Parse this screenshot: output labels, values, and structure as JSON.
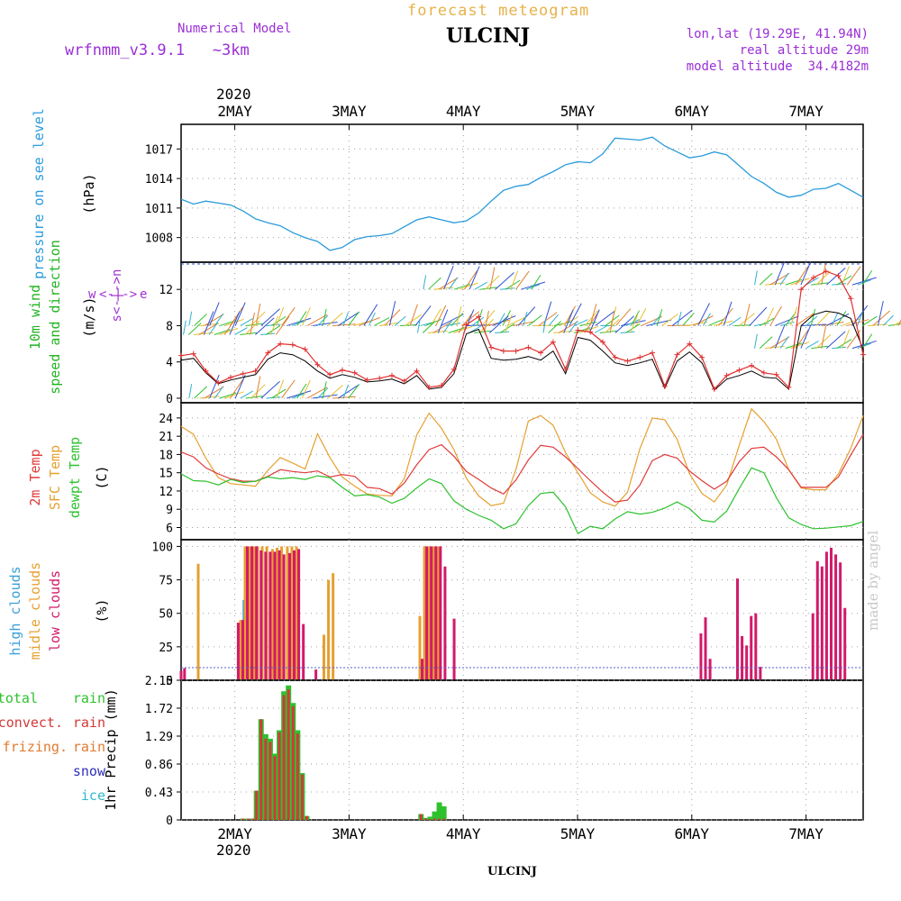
{
  "header": {
    "subtitle_top": "forecast meteogram",
    "station": "ULCINJ",
    "model_line1": "Numerical Model",
    "model_line2": "wrfnmm_v3.9.1   ~3km",
    "coords": "lon,lat (19.29E, 41.94N)",
    "real_alt": "real altitude 29m",
    "model_alt": "model altitude  34.4182m",
    "footer_station": "ULCINJ",
    "credit": "made by angel"
  },
  "colors": {
    "pressure": "#2a9bdc",
    "wind_label": "#22b422",
    "wind_dir": "#a030d0",
    "wind_red": "#e03030",
    "t2m": "#e03a3a",
    "tsfc": "#e6a030",
    "dew": "#2ec12e",
    "high": "#3aa0d8",
    "mid": "#e6a030",
    "low": "#d21a6a",
    "total": "#2ec12e",
    "convect": "#d23a3a",
    "frizing": "#e07a30",
    "snow": "#3030b8",
    "ice": "#30b8c8",
    "grid": "#a0a0a0"
  },
  "chart_data": [
    {
      "type": "line",
      "panel": "pressure",
      "ylabel_parts": [
        "pressure on see level",
        "(hPa)"
      ],
      "yticks": [
        1008,
        1011,
        1014,
        1017
      ],
      "ylim": [
        1005.5,
        1019.5
      ],
      "x_axis_top": {
        "year": "2020",
        "ticks": [
          "2MAY",
          "3MAY",
          "4MAY",
          "5MAY",
          "6MAY",
          "7MAY"
        ]
      },
      "series": [
        {
          "values": [
            1011.9,
            1011.4,
            1011.7,
            1011.5,
            1011.3,
            1010.7,
            1009.9,
            1009.5,
            1009.2,
            1008.5,
            1008.0,
            1007.6,
            1006.7,
            1007.0,
            1007.8,
            1008.1,
            1008.2,
            1008.4,
            1009.1,
            1009.8,
            1010.1,
            1009.8,
            1009.5,
            1009.7,
            1010.5,
            1011.7,
            1012.8,
            1013.2,
            1013.4,
            1014.1,
            1014.7,
            1015.4,
            1015.7,
            1015.6,
            1016.5,
            1018.1,
            1018.0,
            1017.9,
            1018.2,
            1017.3,
            1016.7,
            1016.1,
            1016.3,
            1016.7,
            1016.4,
            1015.3,
            1014.2,
            1013.5,
            1012.6,
            1012.1,
            1012.3,
            1012.9,
            1013.0,
            1013.5,
            1012.8,
            1012.1
          ]
        }
      ]
    },
    {
      "type": "line",
      "panel": "wind",
      "ylabel_parts": [
        "10m wind",
        "speed and direction",
        "(m/s)"
      ],
      "dir_legend": [
        "w",
        "<-|->",
        "e",
        "s<-|->n"
      ],
      "yticks": [
        0,
        4,
        8,
        12
      ],
      "ylim": [
        -0.5,
        15
      ],
      "series": [
        {
          "name": "speed_red",
          "values": [
            4.7,
            4.9,
            3.0,
            1.7,
            2.3,
            2.7,
            3.0,
            5.0,
            6.0,
            5.9,
            5.4,
            3.7,
            2.6,
            3.1,
            2.8,
            2.0,
            2.2,
            2.5,
            1.9,
            3.0,
            1.2,
            1.4,
            3.2,
            8.1,
            9.0,
            5.6,
            5.2,
            5.2,
            5.6,
            5.0,
            6.2,
            3.2,
            7.5,
            7.3,
            6.2,
            4.5,
            4.1,
            4.5,
            5.0,
            1.3,
            4.8,
            6.0,
            4.5,
            1.0,
            2.5,
            3.1,
            3.6,
            2.8,
            2.6,
            1.2,
            12.0,
            13.3,
            14.0,
            13.5,
            11.0,
            4.8
          ]
        },
        {
          "name": "speed_black",
          "values": [
            4.2,
            4.4,
            2.8,
            1.6,
            2.0,
            2.3,
            2.6,
            4.3,
            5.0,
            4.8,
            4.1,
            3.0,
            2.2,
            2.6,
            2.3,
            1.8,
            1.9,
            2.1,
            1.6,
            2.5,
            1.0,
            1.2,
            2.7,
            7.1,
            7.6,
            4.4,
            4.2,
            4.3,
            4.6,
            4.2,
            5.2,
            2.7,
            6.7,
            6.4,
            5.2,
            3.9,
            3.6,
            3.9,
            4.3,
            1.1,
            4.1,
            5.1,
            3.9,
            0.9,
            2.1,
            2.5,
            3.0,
            2.3,
            2.2,
            1.0,
            8.0,
            9.2,
            9.6,
            9.4,
            8.8,
            5.4
          ]
        }
      ]
    },
    {
      "type": "line",
      "panel": "temperature",
      "ylabel_parts": [
        "2m Temp",
        "SFC Temp",
        "dewpt Temp",
        "(C)"
      ],
      "yticks": [
        6,
        9,
        12,
        15,
        18,
        21,
        24
      ],
      "ylim": [
        4,
        26.5
      ],
      "series": [
        {
          "name": "2m Temp",
          "values": [
            18.4,
            17.6,
            15.8,
            14.8,
            14.0,
            13.6,
            13.6,
            14.4,
            15.5,
            15.2,
            15.0,
            15.3,
            14.3,
            14.7,
            14.4,
            12.6,
            12.4,
            11.5,
            13.3,
            16.3,
            18.8,
            19.6,
            17.7,
            15.2,
            13.9,
            12.5,
            11.5,
            13.8,
            17.1,
            19.5,
            19.2,
            17.6,
            15.7,
            13.7,
            11.8,
            10.2,
            10.5,
            13.0,
            17.0,
            18.0,
            17.4,
            15.3,
            13.7,
            12.3,
            13.6,
            16.8,
            19.0,
            19.2,
            17.6,
            15.5,
            12.6,
            12.6,
            12.6,
            14.3,
            17.9,
            21.3
          ]
        },
        {
          "name": "SFC Temp",
          "values": [
            22.6,
            21.3,
            17.4,
            14.2,
            13.2,
            13.0,
            12.8,
            15.4,
            17.5,
            16.6,
            15.6,
            21.4,
            17.5,
            14.3,
            12.8,
            11.5,
            11.3,
            11.2,
            14.0,
            21.2,
            24.8,
            22.3,
            18.8,
            14.1,
            11.2,
            9.6,
            10.0,
            15.5,
            23.5,
            24.4,
            22.8,
            18.3,
            15.0,
            11.7,
            10.2,
            9.5,
            11.8,
            19.0,
            24.0,
            23.7,
            20.5,
            14.8,
            11.6,
            10.2,
            13.0,
            19.5,
            25.5,
            23.4,
            20.5,
            15.5,
            12.5,
            12.2,
            12.2,
            14.8,
            19.0,
            24.4
          ]
        },
        {
          "name": "dewpt Temp",
          "values": [
            14.8,
            13.7,
            13.6,
            13.0,
            13.9,
            13.4,
            13.6,
            14.3,
            14.0,
            14.2,
            13.9,
            14.5,
            14.2,
            12.6,
            11.2,
            11.4,
            11.0,
            10.0,
            10.8,
            12.5,
            14.0,
            13.2,
            10.4,
            9.0,
            8.0,
            7.2,
            5.8,
            6.6,
            9.6,
            11.6,
            11.8,
            9.4,
            5.0,
            6.2,
            5.8,
            7.4,
            8.6,
            8.2,
            8.5,
            9.2,
            10.2,
            9.1,
            7.2,
            6.9,
            8.7,
            12.4,
            15.8,
            15.0,
            10.9,
            7.6,
            6.5,
            5.8,
            5.9,
            6.1,
            6.3,
            7.0
          ]
        }
      ]
    },
    {
      "type": "bar",
      "panel": "clouds",
      "ylabel_parts": [
        "high clouds",
        "midle clouds",
        "low clouds",
        "(%)"
      ],
      "yticks": [
        0,
        25,
        50,
        75,
        100
      ],
      "ylim": [
        0,
        105
      ],
      "series": [
        {
          "name": "high",
          "values": [
            [
              2.08,
              60
            ],
            [
              2.1,
              57
            ],
            [
              2.14,
              58
            ],
            [
              2.16,
              5
            ]
          ]
        },
        {
          "name": "midle",
          "values": [
            [
              1.68,
              87
            ],
            [
              2.05,
              45
            ],
            [
              2.09,
              100
            ],
            [
              2.13,
              100
            ],
            [
              2.17,
              100
            ],
            [
              2.2,
              100
            ],
            [
              2.24,
              100
            ],
            [
              2.28,
              100
            ],
            [
              2.33,
              98
            ],
            [
              2.37,
              99
            ],
            [
              2.41,
              100
            ],
            [
              2.46,
              100
            ],
            [
              2.5,
              100
            ],
            [
              2.54,
              100
            ],
            [
              2.78,
              34
            ],
            [
              2.82,
              75
            ],
            [
              2.86,
              80
            ],
            [
              3.62,
              48
            ],
            [
              3.66,
              100
            ],
            [
              3.7,
              100
            ],
            [
              3.74,
              100
            ],
            [
              3.78,
              100
            ]
          ]
        },
        {
          "name": "low",
          "values": [
            [
              1.53,
              7
            ],
            [
              1.56,
              9
            ],
            [
              2.03,
              43
            ],
            [
              2.07,
              45
            ],
            [
              2.11,
              100
            ],
            [
              2.15,
              100
            ],
            [
              2.19,
              100
            ],
            [
              2.23,
              97
            ],
            [
              2.27,
              96
            ],
            [
              2.31,
              96
            ],
            [
              2.35,
              96
            ],
            [
              2.39,
              97
            ],
            [
              2.43,
              94
            ],
            [
              2.48,
              95
            ],
            [
              2.52,
              97
            ],
            [
              2.56,
              98
            ],
            [
              2.6,
              42
            ],
            [
              2.71,
              8
            ],
            [
              3.64,
              16
            ],
            [
              3.68,
              100
            ],
            [
              3.72,
              100
            ],
            [
              3.76,
              100
            ],
            [
              3.8,
              100
            ],
            [
              3.84,
              85
            ],
            [
              3.92,
              46
            ],
            [
              6.08,
              35
            ],
            [
              6.12,
              47
            ],
            [
              6.16,
              16
            ],
            [
              6.4,
              76
            ],
            [
              6.44,
              33
            ],
            [
              6.48,
              26
            ],
            [
              6.52,
              48
            ],
            [
              6.56,
              50
            ],
            [
              6.6,
              10
            ],
            [
              7.06,
              50
            ],
            [
              7.1,
              89
            ],
            [
              7.14,
              85
            ],
            [
              7.18,
              96
            ],
            [
              7.22,
              99
            ],
            [
              7.26,
              94
            ],
            [
              7.3,
              88
            ],
            [
              7.34,
              54
            ]
          ]
        }
      ]
    },
    {
      "type": "bar",
      "panel": "precipitation",
      "ylabel_parts": [
        "1hr Precip (mm)"
      ],
      "legend": [
        "total",
        "rain",
        "convect.",
        "rain",
        "frizing.",
        "rain",
        "snow",
        "ice"
      ],
      "yticks": [
        "0",
        "0.43",
        "0.86",
        "1.29",
        "1.72",
        "2.15"
      ],
      "ylim": [
        0,
        2.15
      ],
      "x_axis_bottom": {
        "ticks": [
          "2MAY",
          "3MAY",
          "4MAY",
          "5MAY",
          "6MAY",
          "7MAY"
        ],
        "year": "2020"
      },
      "series": [
        {
          "name": "total",
          "values": [
            [
              2.07,
              0.02
            ],
            [
              2.12,
              0.02
            ],
            [
              2.16,
              0.02
            ],
            [
              2.19,
              0.45
            ],
            [
              2.23,
              1.55
            ],
            [
              2.27,
              1.32
            ],
            [
              2.31,
              1.25
            ],
            [
              2.35,
              1.02
            ],
            [
              2.39,
              1.38
            ],
            [
              2.43,
              1.98
            ],
            [
              2.47,
              2.07
            ],
            [
              2.51,
              1.8
            ],
            [
              2.55,
              1.38
            ],
            [
              2.59,
              0.72
            ],
            [
              2.63,
              0.06
            ],
            [
              3.63,
              0.09
            ],
            [
              3.67,
              0.03
            ],
            [
              3.71,
              0.05
            ],
            [
              3.75,
              0.13
            ],
            [
              3.79,
              0.27
            ],
            [
              3.83,
              0.21
            ]
          ]
        },
        {
          "name": "convect.",
          "values": [
            [
              2.07,
              0.02
            ],
            [
              2.12,
              0.02
            ],
            [
              2.16,
              0.02
            ],
            [
              2.19,
              0.45
            ],
            [
              2.23,
              1.55
            ],
            [
              2.27,
              1.25
            ],
            [
              2.31,
              1.2
            ],
            [
              2.35,
              0.98
            ],
            [
              2.39,
              1.35
            ],
            [
              2.43,
              1.92
            ],
            [
              2.47,
              2.01
            ],
            [
              2.51,
              1.75
            ],
            [
              2.55,
              1.33
            ],
            [
              2.59,
              0.7
            ],
            [
              2.63,
              0.06
            ],
            [
              3.63,
              0.09
            ],
            [
              3.67,
              0.02
            ],
            [
              3.71,
              0.01
            ],
            [
              3.75,
              0.02
            ],
            [
              3.79,
              0.02
            ],
            [
              3.83,
              0.02
            ]
          ]
        }
      ]
    }
  ]
}
